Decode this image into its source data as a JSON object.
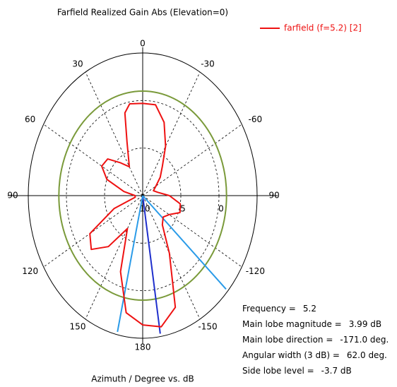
{
  "chart_data": {
    "type": "polar",
    "title": "Farfield Realized Gain Abs (Elevation=0)",
    "x_label": "Azimuth / Degree vs. dB",
    "legend": "top-right",
    "series": [
      {
        "name": "farfield (f=5.2) [2]",
        "color": "#ee1111",
        "x": [
          -180,
          -170,
          -160,
          -150,
          -140,
          -130,
          -120,
          -110,
          -100,
          -90,
          -80,
          -70,
          -60,
          -50,
          -40,
          -30,
          -20,
          -10,
          0,
          10,
          15,
          20,
          30,
          40,
          50,
          60,
          70,
          80,
          90,
          100,
          110,
          120,
          130,
          140,
          150,
          160,
          170,
          180
        ],
        "values": [
          3.6,
          4.0,
          2.5,
          -3,
          -6,
          -6.5,
          -6,
          -4.8,
          -5,
          -6.5,
          -8,
          -8.5,
          -8,
          -7,
          -6,
          -4,
          -1.8,
          -0.3,
          -0.3,
          -0.2,
          -1,
          -4,
          -6.5,
          -5.5,
          -4,
          -3.8,
          -5,
          -7.5,
          -9,
          -9,
          -6,
          -2,
          -1.2,
          -3,
          -6,
          -1.5,
          2.5,
          3.6
        ]
      }
    ],
    "rlim": [
      -10,
      5
    ],
    "rticks": [
      {
        "value": -10,
        "label": "10"
      },
      {
        "value": -5,
        "label": "5"
      },
      0
    ],
    "angle_ticks": [
      0,
      30,
      60,
      90,
      120,
      150,
      180,
      -150,
      -120,
      -90,
      -60,
      -30
    ],
    "level_circle": {
      "value": 0.99,
      "color": "#7a9a3a"
    },
    "direction_lines": [
      {
        "angle": -171,
        "color": "#1f2fcc"
      },
      {
        "angle": -132,
        "color": "#2a9be8"
      },
      {
        "angle": 167,
        "color": "#2a9be8"
      }
    ],
    "info": [
      {
        "label": "Frequency =",
        "value": "5.2"
      },
      {
        "label": "Main lobe magnitude =",
        "value": "3.99 dB"
      },
      {
        "label": "Main lobe direction =",
        "value": "-171.0 deg."
      },
      {
        "label": "Angular width (3 dB) =",
        "value": "62.0 deg."
      },
      {
        "label": "Side lobe level =",
        "value": "-3.7 dB"
      }
    ]
  }
}
